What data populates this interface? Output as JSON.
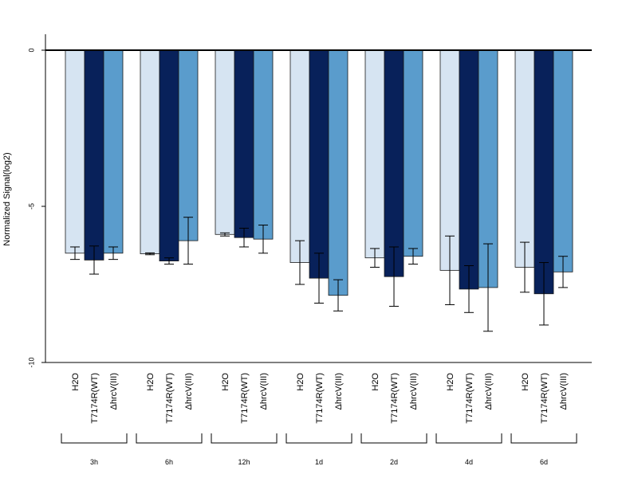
{
  "chart_data": {
    "type": "bar",
    "title": "",
    "xlabel": "",
    "ylabel": "Normalized Signal(log2)",
    "ylim": [
      -10,
      0.5
    ],
    "yticks": [
      0,
      -5,
      -10
    ],
    "grid": false,
    "legend": "none",
    "groups": [
      "3h",
      "6h",
      "12h",
      "1d",
      "2d",
      "4d",
      "6d"
    ],
    "series": [
      {
        "name": "H2O",
        "label": "H2O",
        "color": "#d6e4f2",
        "values": [
          -6.5,
          -6.52,
          -5.9,
          -6.8,
          -6.65,
          -7.05,
          -6.95
        ],
        "error": [
          0.2,
          0.03,
          0.05,
          0.7,
          0.3,
          1.1,
          0.8
        ]
      },
      {
        "name": "T7174R(WT)",
        "label": "T7174R(WT)",
        "color": "#08215a",
        "values": [
          -6.72,
          -6.75,
          -6.0,
          -7.3,
          -7.25,
          -7.65,
          -7.8
        ],
        "error": [
          0.45,
          0.1,
          0.3,
          0.8,
          0.95,
          0.75,
          1.0
        ]
      },
      {
        "name": "ΔhrcV(III)",
        "label": "ΔhrcV(III)",
        "color": "#5a9ccc",
        "values": [
          -6.5,
          -6.1,
          -6.05,
          -7.85,
          -6.6,
          -7.6,
          -7.1
        ],
        "error": [
          0.2,
          0.75,
          0.45,
          0.5,
          0.25,
          1.4,
          0.5
        ]
      }
    ]
  }
}
